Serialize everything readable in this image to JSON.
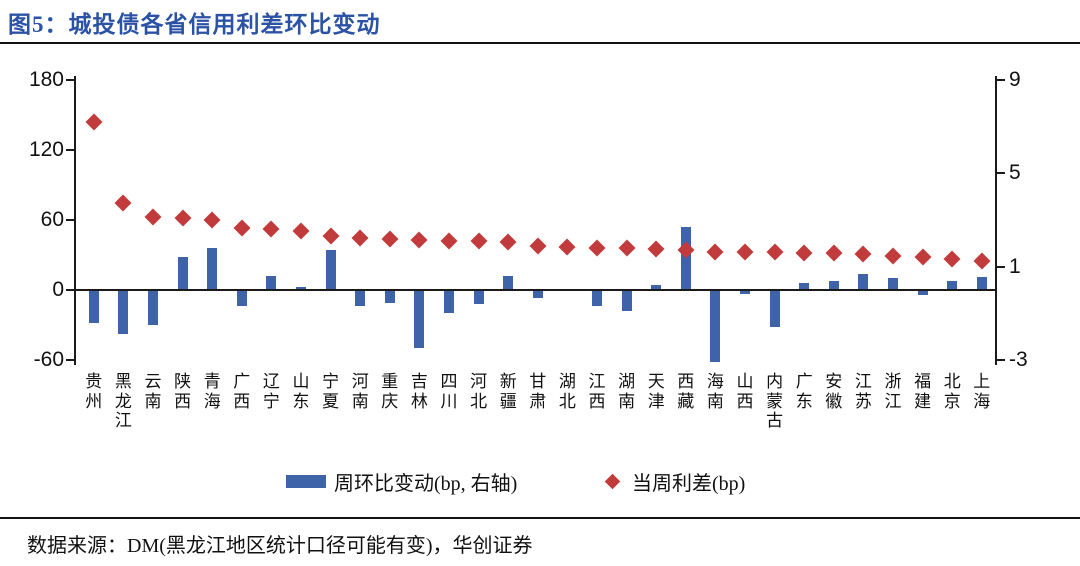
{
  "title": "图5：城投债各省信用利差环比变动",
  "footer": {
    "source": "数据来源：DM(黑龙江地区统计口径可能有变)，华创证券"
  },
  "colors": {
    "title": "#2b52a4",
    "bar": "#3e63a9",
    "diamond": "#c23b3c",
    "axis": "#1a1a1a"
  },
  "chart_data": {
    "type": "bar",
    "subtype": "bar-and-diamond-scatter combo, dual axis",
    "title": "图5：城投债各省信用利差环比变动",
    "categories": [
      "贵州",
      "黑龙江",
      "云南",
      "陕西",
      "青海",
      "广西",
      "辽宁",
      "山东",
      "宁夏",
      "河南",
      "重庆",
      "吉林",
      "四川",
      "河北",
      "新疆",
      "甘肃",
      "湖北",
      "江西",
      "湖南",
      "天津",
      "西藏",
      "海南",
      "山西",
      "内蒙古",
      "广东",
      "安徽",
      "江苏",
      "浙江",
      "福建",
      "北京",
      "上海"
    ],
    "series": [
      {
        "name": "周环比变动(bp, 右轴)",
        "type": "bar",
        "axis": "right",
        "values": [
          -1.4,
          -1.9,
          -1.5,
          1.4,
          1.8,
          -0.7,
          0.6,
          0.15,
          1.7,
          -0.7,
          -0.55,
          -2.5,
          -1.0,
          -0.6,
          0.6,
          -0.35,
          0,
          -0.7,
          -0.9,
          0.2,
          2.7,
          -3.1,
          -0.15,
          -1.6,
          0.3,
          0.4,
          0.7,
          0.5,
          -0.2,
          0.4,
          0.55
        ]
      },
      {
        "name": "当周利差(bp)",
        "type": "scatter",
        "marker": "diamond",
        "axis": "left",
        "values": [
          144,
          75,
          63,
          62,
          60,
          53,
          52,
          51,
          46,
          45,
          44,
          43,
          42,
          42,
          41,
          38,
          37,
          36,
          36,
          35,
          34,
          33,
          33,
          33,
          32,
          32,
          31,
          29,
          28,
          27,
          25
        ]
      }
    ],
    "left_axis": {
      "ticks": [
        180,
        120,
        60,
        0,
        -60
      ],
      "range": [
        -60,
        180
      ]
    },
    "right_axis": {
      "ticks": [
        9,
        5,
        1,
        -3
      ],
      "range": [
        -3,
        9
      ]
    },
    "grid": false,
    "legend_position": "bottom"
  }
}
